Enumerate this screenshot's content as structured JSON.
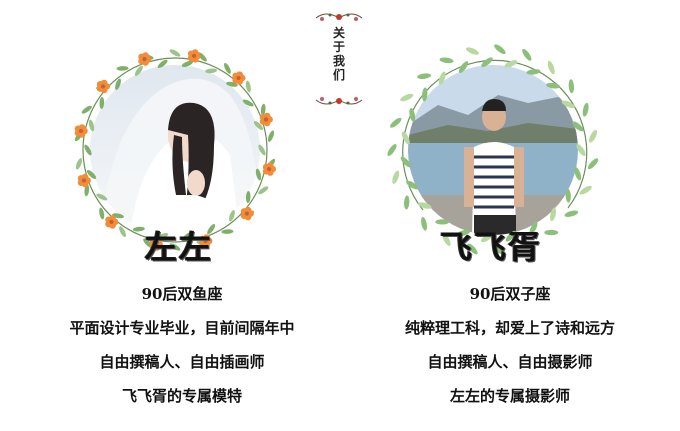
{
  "badge": {
    "text": "关\n于\n我\n们"
  },
  "left_profile": {
    "name": "左左",
    "lines": [
      "90后双鱼座",
      "平面设计专业毕业，目前间隔年中",
      "自由撰稿人、自由插画师",
      "飞飞胥的专属模特"
    ]
  },
  "right_profile": {
    "name": "飞飞胥",
    "lines": [
      "90后双子座",
      "纯粹理工科，却爱上了诗和远方",
      "自由撰稿人、自由摄影师",
      "左左的专属摄影师"
    ]
  },
  "colors": {
    "leaf_green": "#7fb069",
    "flower_orange": "#f08c3a",
    "text": "#111111"
  }
}
